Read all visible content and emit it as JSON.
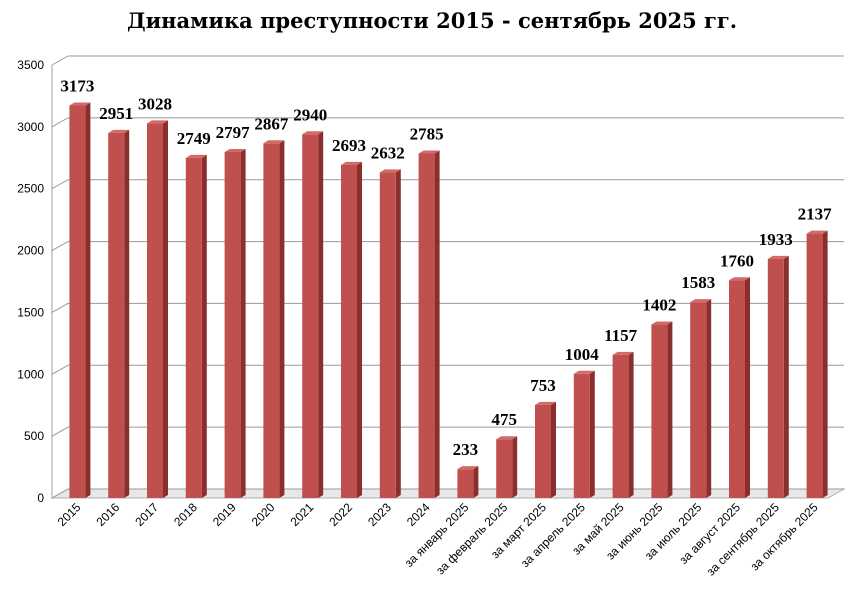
{
  "chart_data": {
    "type": "bar",
    "title": "Динамика преступности 2015 - сентябрь 2025 гг.",
    "xlabel": "",
    "ylabel": "",
    "ylim": [
      0,
      3500
    ],
    "yticks": [
      0,
      500,
      1000,
      1500,
      2000,
      2500,
      3000,
      3500
    ],
    "grid": true,
    "legend": "none",
    "bar_color": "#c0504d",
    "categories": [
      "2015",
      "2016",
      "2017",
      "2018",
      "2019",
      "2020",
      "2021",
      "2022",
      "2023",
      "2024",
      "за январь 2025",
      "за февраль 2025",
      "за март 2025",
      "за апрель 2025",
      "за май 2025",
      "за июнь 2025",
      "за июль 2025",
      "за август 2025",
      "за сентябрь 2025",
      "за октябрь 2025"
    ],
    "values": [
      3173,
      2951,
      3028,
      2749,
      2797,
      2867,
      2940,
      2693,
      2632,
      2785,
      233,
      475,
      753,
      1004,
      1157,
      1402,
      1583,
      1760,
      1933,
      2137
    ]
  }
}
